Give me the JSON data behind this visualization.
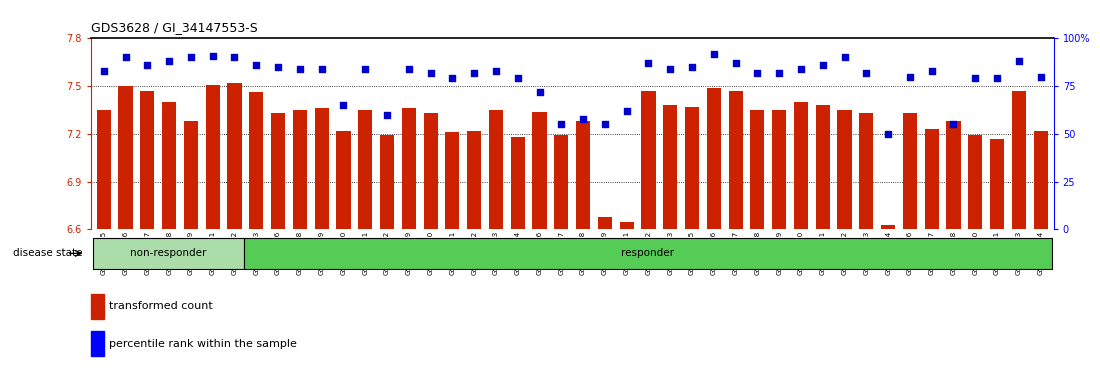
{
  "title": "GDS3628 / GI_34147553-S",
  "samples": [
    "GSM304385",
    "GSM304386",
    "GSM304387",
    "GSM304388",
    "GSM304389",
    "GSM304391",
    "GSM304392",
    "GSM304393",
    "GSM304396",
    "GSM304398",
    "GSM304399",
    "GSM304400",
    "GSM304401",
    "GSM304402",
    "GSM304409",
    "GSM304410",
    "GSM304411",
    "GSM304412",
    "GSM304413",
    "GSM304414",
    "GSM304416",
    "GSM304417",
    "GSM304418",
    "GSM304419",
    "GSM304421",
    "GSM304422",
    "GSM304423",
    "GSM304425",
    "GSM304426",
    "GSM304427",
    "GSM304428",
    "GSM304429",
    "GSM304430",
    "GSM304431",
    "GSM304432",
    "GSM304433",
    "GSM304434",
    "GSM304436",
    "GSM304437",
    "GSM304438",
    "GSM304440",
    "GSM304441",
    "GSM304443",
    "GSM304444"
  ],
  "bar_values": [
    7.35,
    7.5,
    7.47,
    7.4,
    7.28,
    7.51,
    7.52,
    7.46,
    7.33,
    7.35,
    7.36,
    7.22,
    7.35,
    7.19,
    7.36,
    7.33,
    7.21,
    7.22,
    7.35,
    7.18,
    7.34,
    7.19,
    7.28,
    6.68,
    6.65,
    7.47,
    7.38,
    7.37,
    7.49,
    7.47,
    7.35,
    7.35,
    7.4,
    7.38,
    7.35,
    7.33,
    6.63,
    7.33,
    7.23,
    7.28,
    7.19,
    7.17,
    7.47,
    7.22
  ],
  "percentile_values": [
    83,
    90,
    86,
    88,
    90,
    91,
    90,
    86,
    85,
    84,
    84,
    65,
    84,
    60,
    84,
    82,
    79,
    82,
    83,
    79,
    72,
    55,
    58,
    55,
    62,
    87,
    84,
    85,
    92,
    87,
    82,
    82,
    84,
    86,
    90,
    82,
    50,
    80,
    83,
    55,
    79,
    79,
    88,
    80
  ],
  "non_responder_count": 7,
  "ylim_left": [
    6.6,
    7.8
  ],
  "ylim_right": [
    0,
    100
  ],
  "yticks_left": [
    6.6,
    6.9,
    7.2,
    7.5,
    7.8
  ],
  "yticks_right": [
    0,
    25,
    50,
    75,
    100
  ],
  "bar_color": "#cc2200",
  "dot_color": "#0000cc",
  "bar_bottom": 6.6,
  "non_responder_color": "#aaddaa",
  "responder_color": "#55cc55",
  "group_label_non": "non-responder",
  "group_label_res": "responder",
  "legend_red_label": "transformed count",
  "legend_blue_label": "percentile rank within the sample",
  "disease_state_label": "disease state"
}
